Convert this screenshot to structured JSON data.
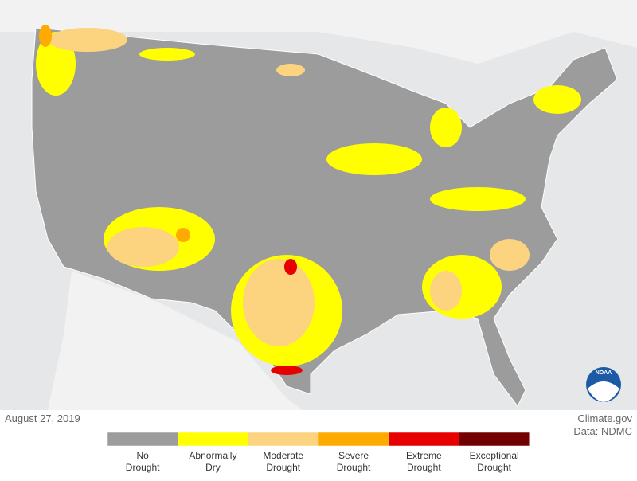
{
  "date": "August 27, 2019",
  "credit": {
    "site": "Climate.gov",
    "source": "Data: NDMC"
  },
  "logo": "NOAA",
  "legend": [
    {
      "label": [
        "No",
        "Drought"
      ],
      "color": "#9c9c9c"
    },
    {
      "label": [
        "Abnormally",
        "Dry"
      ],
      "color": "#ffff00"
    },
    {
      "label": [
        "Moderate",
        "Drought"
      ],
      "color": "#fcd37f"
    },
    {
      "label": [
        "Severe",
        "Drought"
      ],
      "color": "#ffaa00"
    },
    {
      "label": [
        "Extreme",
        "Drought"
      ],
      "color": "#e60000"
    },
    {
      "label": [
        "Exceptional",
        "Drought"
      ],
      "color": "#730000"
    }
  ]
}
